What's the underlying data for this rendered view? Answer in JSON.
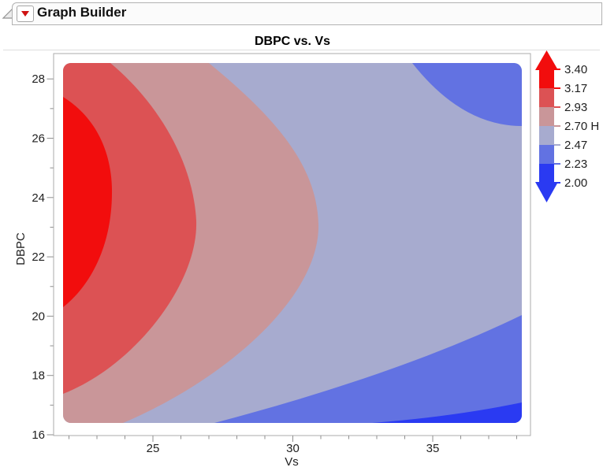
{
  "window": {
    "header": {
      "title": "Graph Builder",
      "outline_toggle_icon": "outline-collapse-triangle",
      "menu_button_icon": "red-triangle-menu"
    }
  },
  "chart": {
    "title": "DBPC vs. Vs"
  },
  "chart_data": {
    "type": "contour",
    "title": "DBPC vs. Vs",
    "xlabel": "Vs",
    "ylabel": "DBPC",
    "xlim": [
      21.5,
      38.5
    ],
    "ylim": [
      16,
      28.85
    ],
    "x_major_ticks": [
      25,
      30,
      35
    ],
    "x_minor_ticks": [
      22,
      23,
      24,
      26,
      27,
      28,
      29,
      31,
      32,
      33,
      34,
      36,
      37,
      38
    ],
    "y_major_ticks": [
      28,
      26,
      24,
      22,
      20,
      18,
      16
    ],
    "y_minor_ticks": [
      27,
      25,
      23,
      21,
      19,
      17
    ],
    "grid": false,
    "legend": {
      "position": "right",
      "labels": [
        "3.40",
        "3.17",
        "2.93",
        "2.70 H",
        "2.47",
        "2.23",
        "2.00"
      ],
      "levels": [
        3.4,
        3.17,
        2.93,
        2.7,
        2.47,
        2.23,
        2.0
      ],
      "band_colors_top_to_bottom": [
        "#f20d0d",
        "#dc5254",
        "#c99699",
        "#a7abcf",
        "#6272e2",
        "#2a3af2"
      ],
      "highlighted_level": "2.70 H"
    },
    "bands": [
      {
        "range": [
          3.17,
          3.4
        ],
        "color": "#f20d0d",
        "region": "innermost blob hugging left edge; DBPC 20.1-27.4 at Vs 21.8, reaching right to about Vs 23.8; response peak near Vs 22, DBPC 23.5"
      },
      {
        "range": [
          2.93,
          3.17
        ],
        "color": "#dc5254",
        "region": "ring around peak; touches top edge Vs 21.8-23.7, widest about Vs 26.6 near DBPC 23.5, runs down left edge to DBPC 17.3"
      },
      {
        "range": [
          2.7,
          2.93
        ],
        "color": "#c99699",
        "region": "crescent from top edge at Vs 27 bulging right to Vs 31 near DBPC 23, sweeping down-left to bottom edge at Vs 24"
      },
      {
        "range": [
          2.47,
          2.7
        ],
        "color": "#a7abcf",
        "region": "large background band covering the centre and right of the plot"
      },
      {
        "range": [
          2.23,
          2.47
        ],
        "color": "#6272e2",
        "region": "top-right corner above DBPC 26.4 for Vs greater than 34.3, plus bottom-right wedge rising from Vs 27.2 at DBPC 16.4 to DBPC 20.1 at Vs 38.2"
      },
      {
        "range": [
          2.0,
          2.23
        ],
        "color": "#2a3af2",
        "region": "thin sliver along bottom edge from Vs 32.8 to 38.2, below DBPC 17.1"
      }
    ],
    "maximum": {
      "vs": 22,
      "dbpc": 23.5,
      "value": "above 3.17, toward 3.40"
    },
    "minimum": {
      "vs": 38,
      "dbpc": 16.5,
      "value": "below 2.23, toward 2.00"
    }
  }
}
